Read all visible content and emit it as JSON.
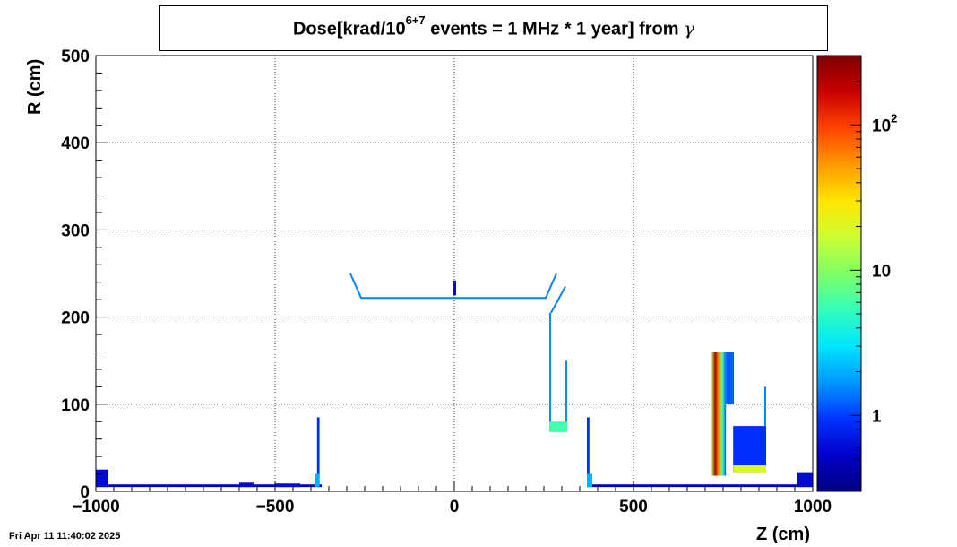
{
  "title": {
    "prefix": "Dose[krad/10",
    "exponent": "6+7",
    "suffix": " events = 1 MHz * 1 year] from ",
    "symbol": "γ"
  },
  "timestamp": "Fri Apr 11 11:40:02 2025",
  "chart_data": {
    "type": "heatmap",
    "xlabel": "Z (cm)",
    "ylabel": "R (cm)",
    "xlim": [
      -1000,
      1000
    ],
    "ylim": [
      0,
      500
    ],
    "x_ticks": [
      {
        "value": -1000,
        "label": "−1000"
      },
      {
        "value": -500,
        "label": "−500"
      },
      {
        "value": 0,
        "label": "0"
      },
      {
        "value": 500,
        "label": "500"
      },
      {
        "value": 1000,
        "label": "1000"
      }
    ],
    "y_ticks": [
      {
        "value": 0,
        "label": "0"
      },
      {
        "value": 100,
        "label": "100"
      },
      {
        "value": 200,
        "label": "200"
      },
      {
        "value": 300,
        "label": "300"
      },
      {
        "value": 400,
        "label": "400"
      },
      {
        "value": 500,
        "label": "500"
      }
    ],
    "grid": true,
    "colorbar": {
      "scale": "log",
      "range": [
        0.3,
        300
      ],
      "ticks": [
        {
          "value": 1,
          "base": "1",
          "exp": ""
        },
        {
          "value": 10,
          "base": "10",
          "exp": ""
        },
        {
          "value": 100,
          "base": "10",
          "exp": "2"
        }
      ],
      "palette": [
        "#00007f",
        "#0000c8",
        "#0033ff",
        "#0099ff",
        "#00e5ff",
        "#33ffbb",
        "#7fff66",
        "#ccff33",
        "#ffe500",
        "#ff9900",
        "#ff4400",
        "#c80000",
        "#7f0000"
      ]
    },
    "regions": [
      {
        "name": "beam-pipe-left",
        "kind": "rect",
        "z": [
          -1000,
          -370
        ],
        "r": [
          5,
          8
        ],
        "value": 0.5
      },
      {
        "name": "beam-pipe-right",
        "kind": "rect",
        "z": [
          370,
          1000
        ],
        "r": [
          5,
          8
        ],
        "value": 0.5
      },
      {
        "name": "far-left-block",
        "kind": "rect",
        "z": [
          -1000,
          -965
        ],
        "r": [
          5,
          25
        ],
        "value": 0.6
      },
      {
        "name": "far-right-block",
        "kind": "rect",
        "z": [
          955,
          1000
        ],
        "r": [
          5,
          22
        ],
        "value": 0.6
      },
      {
        "name": "left-bumps",
        "kind": "rect",
        "z": [
          -600,
          -560
        ],
        "r": [
          5,
          10
        ],
        "value": 0.6
      },
      {
        "name": "left-bumps-2",
        "kind": "rect",
        "z": [
          -500,
          -430
        ],
        "r": [
          5,
          9
        ],
        "value": 0.6
      },
      {
        "name": "left-wall",
        "kind": "rect",
        "z": [
          -383,
          -376
        ],
        "r": [
          5,
          85
        ],
        "value": 0.9
      },
      {
        "name": "left-wall-base",
        "kind": "rect",
        "z": [
          -390,
          -376
        ],
        "r": [
          5,
          20
        ],
        "value": 2.0
      },
      {
        "name": "right-wall",
        "kind": "rect",
        "z": [
          370,
          377
        ],
        "r": [
          5,
          85
        ],
        "value": 0.9
      },
      {
        "name": "right-wall-base",
        "kind": "rect",
        "z": [
          370,
          385
        ],
        "r": [
          5,
          20
        ],
        "value": 2.0
      },
      {
        "name": "central-bar",
        "kind": "rect",
        "z": [
          -5,
          5
        ],
        "r": [
          225,
          242
        ],
        "value": 0.6
      },
      {
        "name": "cone-vertical",
        "kind": "rect",
        "z": [
          265,
          270
        ],
        "r": [
          70,
          205
        ],
        "value": 1.6
      },
      {
        "name": "cone-vertical-2",
        "kind": "rect",
        "z": [
          310,
          315
        ],
        "r": [
          78,
          150
        ],
        "value": 1.6
      },
      {
        "name": "cone-base",
        "kind": "rect",
        "z": [
          265,
          315
        ],
        "r": [
          68,
          80
        ],
        "value": 6.0
      },
      {
        "name": "calorimeter-hot",
        "kind": "rect",
        "z": [
          718,
          758
        ],
        "r": [
          18,
          160
        ],
        "value": 50,
        "gradient": true
      },
      {
        "name": "calorimeter-upper",
        "kind": "rect",
        "z": [
          758,
          780
        ],
        "r": [
          100,
          160
        ],
        "value": 1.2
      },
      {
        "name": "calorimeter-right",
        "kind": "rect",
        "z": [
          778,
          870
        ],
        "r": [
          22,
          75
        ],
        "value": 0.9
      },
      {
        "name": "calorimeter-base",
        "kind": "rect",
        "z": [
          778,
          870
        ],
        "r": [
          22,
          30
        ],
        "value": 20
      },
      {
        "name": "calorimeter-tower",
        "kind": "rect",
        "z": [
          865,
          870
        ],
        "r": [
          75,
          120
        ],
        "value": 1.5
      }
    ],
    "outline": {
      "points": [
        [
          -290,
          250
        ],
        [
          -260,
          222
        ],
        [
          255,
          222
        ],
        [
          285,
          250
        ]
      ],
      "value": 1.5
    },
    "cone-outline": {
      "points": [
        [
          270,
          205
        ],
        [
          310,
          235
        ]
      ],
      "value": 1.5
    }
  }
}
